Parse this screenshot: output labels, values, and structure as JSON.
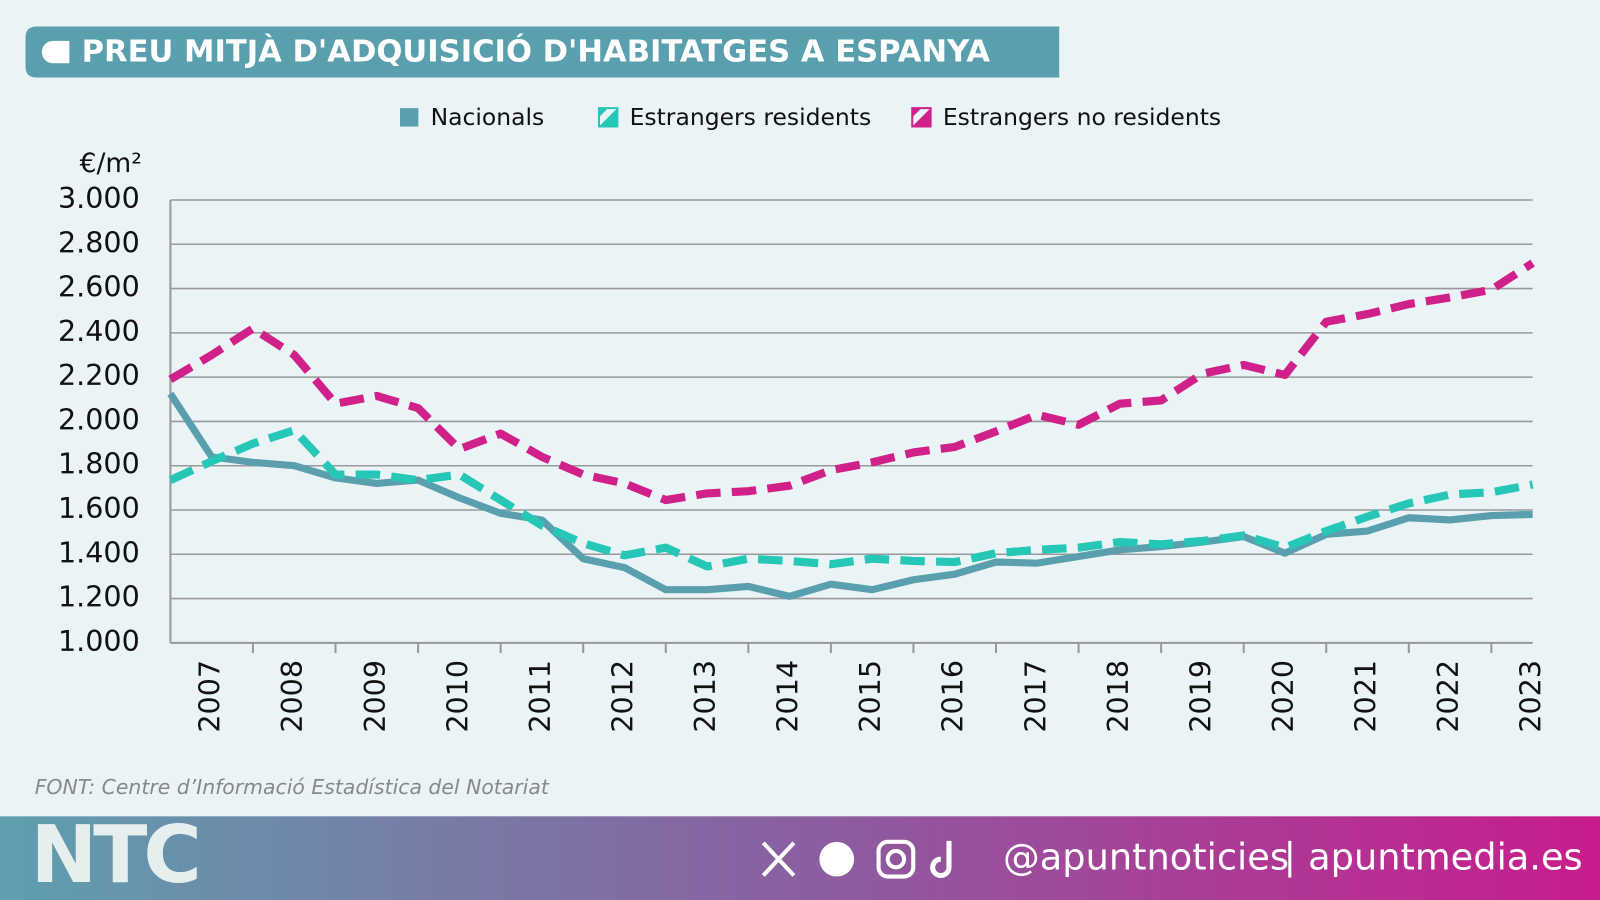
{
  "chart_data": {
    "type": "line",
    "title": "PREU MITJÀ D'ADQUISICIÓ D'HABITATGES A ESPANYA",
    "y_label": "€/m²",
    "source": "FONT: Centre d’Informació Estadística del Notariat",
    "categories": [
      null,
      "2007",
      null,
      "2008",
      null,
      "2009",
      null,
      "2010",
      null,
      "2011",
      null,
      "2012",
      null,
      "2013",
      null,
      "2014",
      null,
      "2015",
      null,
      "2016",
      null,
      "2017",
      null,
      "2018",
      null,
      "2019",
      null,
      "2020",
      null,
      "2021",
      null,
      "2022",
      null,
      "2023"
    ],
    "series": [
      {
        "name": "Nacionals",
        "color": "#5a9fae",
        "dashed": false,
        "values": [
          2125,
          1840,
          1815,
          1800,
          1745,
          1720,
          1735,
          1655,
          1585,
          1555,
          1380,
          1340,
          1240,
          1240,
          1255,
          1210,
          1265,
          1240,
          1285,
          1310,
          1365,
          1360,
          1390,
          1420,
          1435,
          1455,
          1480,
          1405,
          1490,
          1505,
          1565,
          1555,
          1575,
          1580
        ]
      },
      {
        "name": "Estrangers residents",
        "color": "#27c7b8",
        "dashed": true,
        "values": [
          1735,
          1820,
          1900,
          1960,
          1760,
          1760,
          1735,
          1760,
          1645,
          1530,
          1450,
          1395,
          1430,
          1345,
          1380,
          1370,
          1355,
          1380,
          1370,
          1365,
          1405,
          1420,
          1430,
          1455,
          1445,
          1460,
          1485,
          1430,
          1505,
          1570,
          1630,
          1670,
          1680,
          1715
        ]
      },
      {
        "name": "Estrangers no residents",
        "color": "#d0218a",
        "dashed": true,
        "values": [
          2190,
          2300,
          2420,
          2300,
          2080,
          2115,
          2060,
          1875,
          1945,
          1840,
          1760,
          1720,
          1645,
          1675,
          1685,
          1710,
          1780,
          1815,
          1860,
          1885,
          1955,
          2030,
          1985,
          2080,
          2095,
          2215,
          2255,
          2210,
          2450,
          2485,
          2530,
          2560,
          2595,
          2715
        ]
      }
    ],
    "ylim": [
      1000,
      3000
    ],
    "yticks": [
      {
        "value": 1000,
        "label": "1.000"
      },
      {
        "value": 1200,
        "label": "1.200"
      },
      {
        "value": 1400,
        "label": "1.400"
      },
      {
        "value": 1600,
        "label": "1.600"
      },
      {
        "value": 1800,
        "label": "1.800"
      },
      {
        "value": 2000,
        "label": "2.000"
      },
      {
        "value": 2200,
        "label": "2.200"
      },
      {
        "value": 2400,
        "label": "2.400"
      },
      {
        "value": 2600,
        "label": "2.600"
      },
      {
        "value": 2800,
        "label": "2.800"
      },
      {
        "value": 3000,
        "label": "3.000"
      }
    ],
    "grid": true
  },
  "footer": {
    "logo": "NTC",
    "handle": "@apuntnoticies",
    "site": "apuntmedia.es"
  }
}
